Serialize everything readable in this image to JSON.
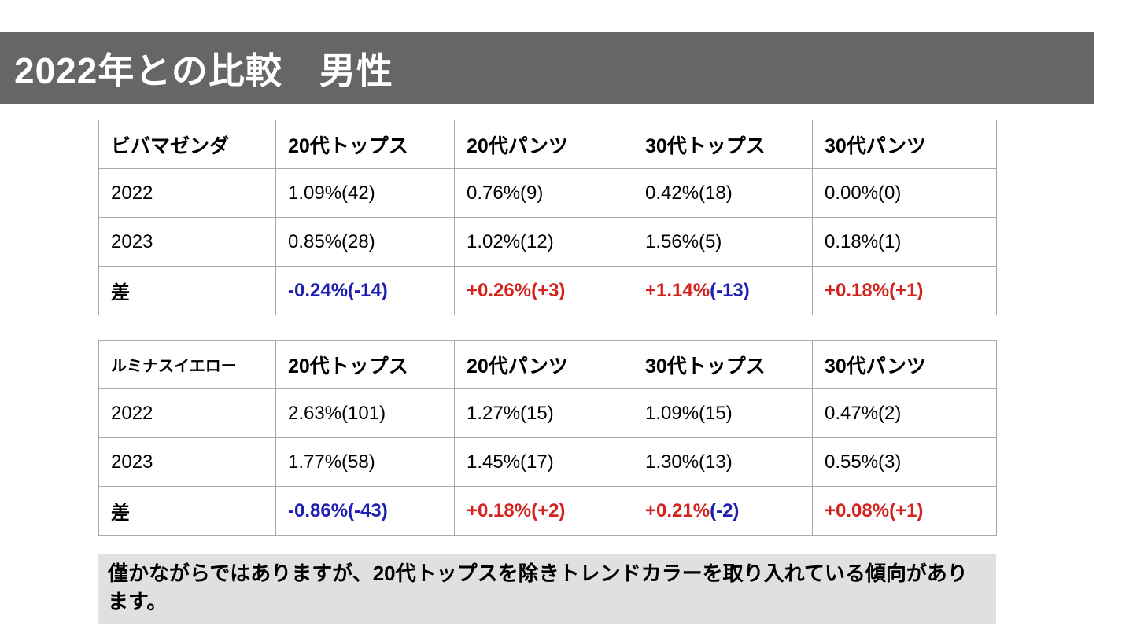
{
  "title": "2022年との比較　男性",
  "colors": {
    "red": "#d2231e",
    "blue": "#1e1eb4",
    "header_bar": "#666666",
    "note_bg": "#e0e0e0",
    "table_border": "#a9a9a9"
  },
  "tables": [
    {
      "name": "ビバマゼンダ",
      "columns": [
        "20代トップス",
        "20代パンツ",
        "30代トップス",
        "30代パンツ"
      ],
      "rows": [
        {
          "label": "2022",
          "cells": [
            "1.09%(42)",
            "0.76%(9)",
            "0.42%(18)",
            "0.00%(0)"
          ]
        },
        {
          "label": "2023",
          "cells": [
            "0.85%(28)",
            "1.02%(12)",
            "1.56%(5)",
            "0.18%(1)"
          ]
        }
      ],
      "diff": {
        "label": "差",
        "cells": [
          [
            {
              "text": "-0.24%(-14)",
              "color": "blue"
            }
          ],
          [
            {
              "text": "+0.26%(+3)",
              "color": "red"
            }
          ],
          [
            {
              "text": "+1.14%",
              "color": "red"
            },
            {
              "text": "(-13)",
              "color": "blue"
            }
          ],
          [
            {
              "text": "+0.18%(+1)",
              "color": "red"
            }
          ]
        ]
      }
    },
    {
      "name": "ルミナスイエロー",
      "columns": [
        "20代トップス",
        "20代パンツ",
        "30代トップス",
        "30代パンツ"
      ],
      "rows": [
        {
          "label": "2022",
          "cells": [
            "2.63%(101)",
            "1.27%(15)",
            "1.09%(15)",
            "0.47%(2)"
          ]
        },
        {
          "label": "2023",
          "cells": [
            "1.77%(58)",
            "1.45%(17)",
            "1.30%(13)",
            "0.55%(3)"
          ]
        }
      ],
      "diff": {
        "label": "差",
        "cells": [
          [
            {
              "text": "-0.86%(-43)",
              "color": "blue"
            }
          ],
          [
            {
              "text": "+0.18%(+2)",
              "color": "red"
            }
          ],
          [
            {
              "text": "+0.21%",
              "color": "red"
            },
            {
              "text": "(-2)",
              "color": "blue"
            }
          ],
          [
            {
              "text": "+0.08%(+1)",
              "color": "red"
            }
          ]
        ]
      }
    }
  ],
  "note": "僅かながらではありますが、20代トップスを除きトレンドカラーを取り入れている傾向があります。"
}
